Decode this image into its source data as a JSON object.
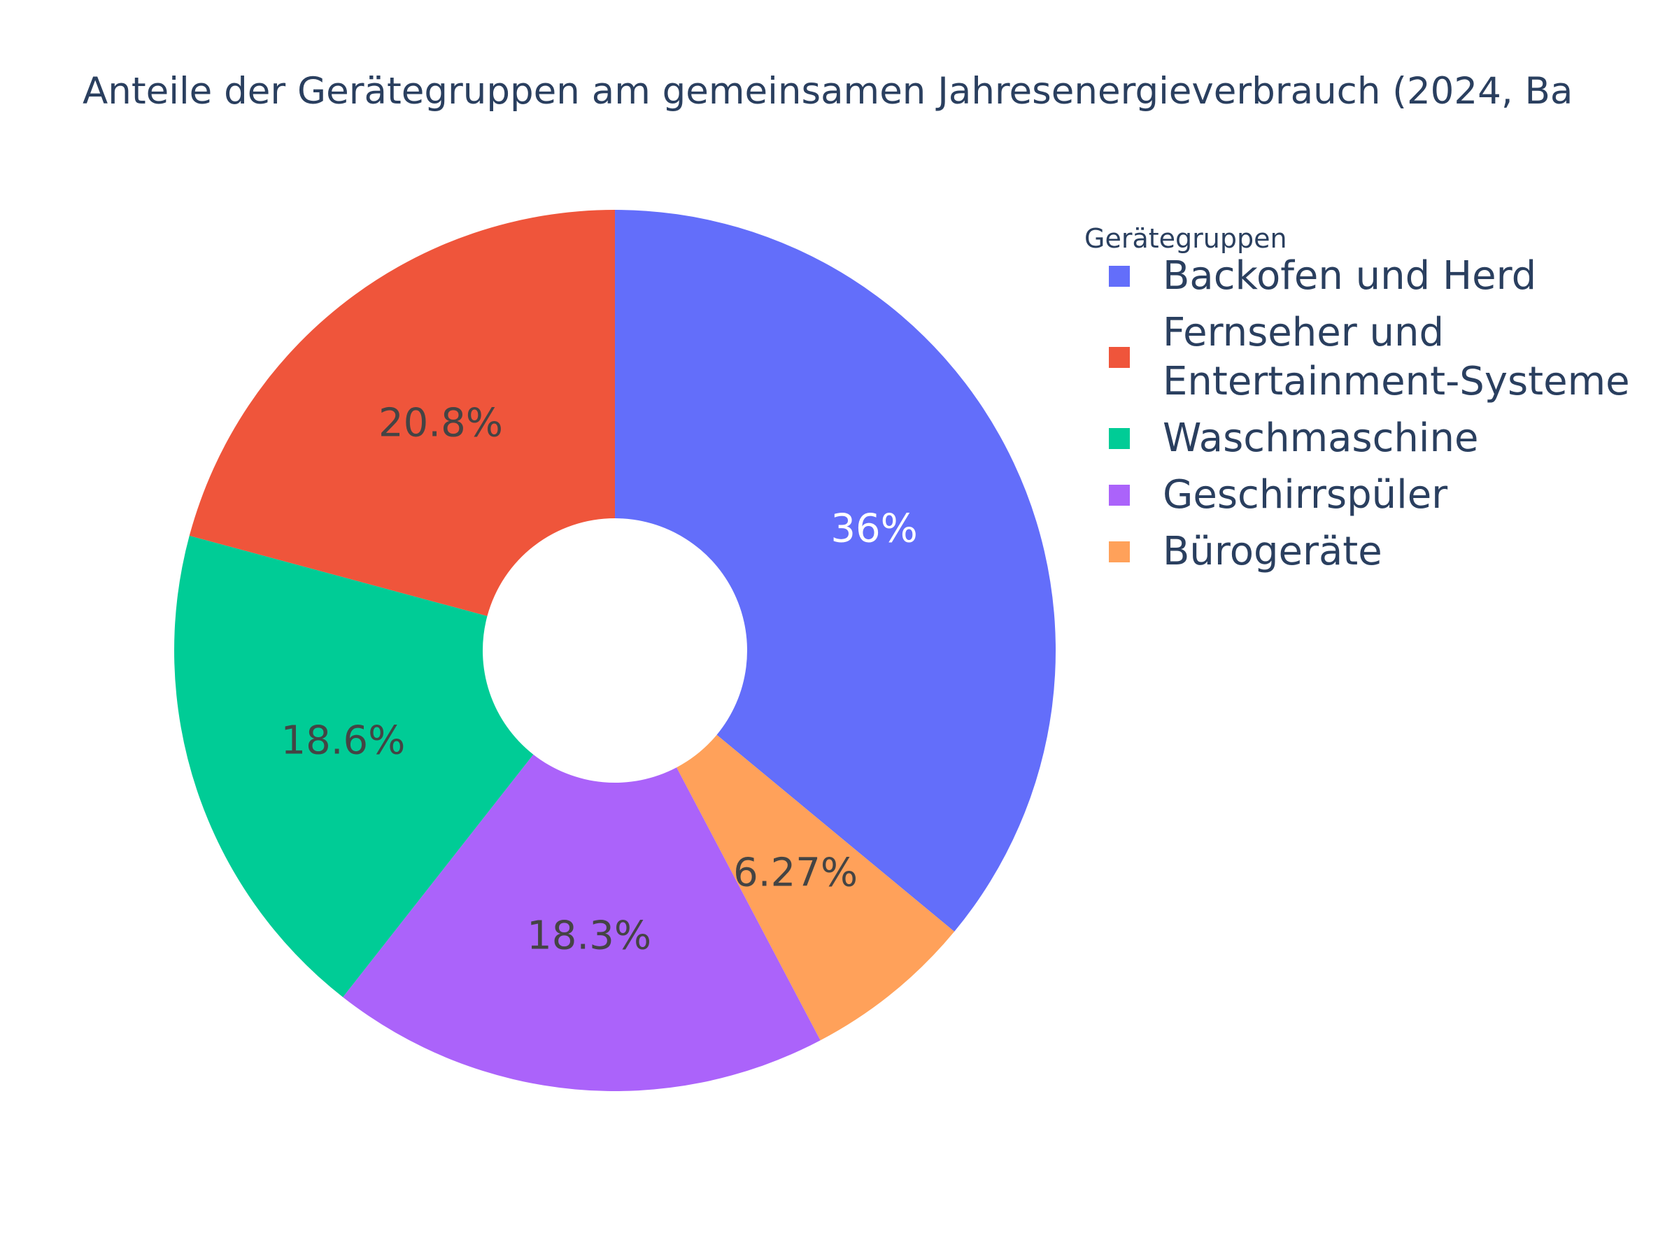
{
  "chart_data": {
    "type": "pie",
    "title": "Anteile der Gerätegruppen am gemeinsamen Jahresenergieverbrauch (2024, Ba",
    "legend_title": "Gerätegruppen",
    "legend_position": "right",
    "hole": 0.3,
    "direction": "clockwise",
    "slices": [
      {
        "label": "Backofen und Herd",
        "label_lines": [
          "Backofen und Herd"
        ],
        "value": 36.0,
        "text": "36%",
        "color": "#636efa",
        "text_color": "#ffffff"
      },
      {
        "label": "Bürogeräte",
        "label_lines": [
          "Bürogeräte"
        ],
        "value": 6.27,
        "text": "6.27%",
        "color": "#ffa15a",
        "text_color": "#444444"
      },
      {
        "label": "Geschirrspüler",
        "label_lines": [
          "Geschirrspüler"
        ],
        "value": 18.3,
        "text": "18.3%",
        "color": "#ab63fa",
        "text_color": "#444444"
      },
      {
        "label": "Waschmaschine",
        "label_lines": [
          "Waschmaschine"
        ],
        "value": 18.6,
        "text": "18.6%",
        "color": "#00cc96",
        "text_color": "#444444"
      },
      {
        "label": "Fernseher und Entertainment-Systeme",
        "label_lines": [
          "Fernseher und",
          "Entertainment-Systeme"
        ],
        "value": 20.8,
        "text": "20.8%",
        "color": "#ef553b",
        "text_color": "#444444"
      }
    ],
    "legend_order": [
      "Backofen und Herd",
      "Fernseher und Entertainment-Systeme",
      "Waschmaschine",
      "Geschirrspüler",
      "Bürogeräte"
    ]
  }
}
